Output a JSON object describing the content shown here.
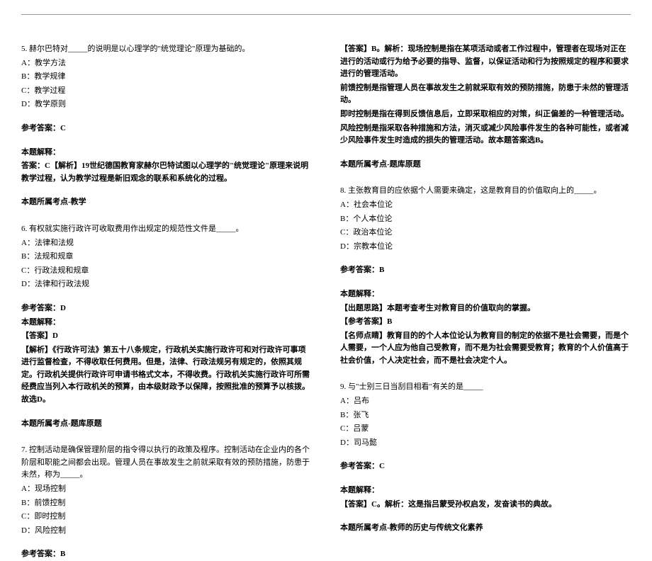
{
  "left": {
    "q5": {
      "stem": "5. 赫尔巴特对_____的说明是以心理学的\"统觉理论\"原理为基础的。",
      "a": "A：教学方法",
      "b": "B：教学规律",
      "c": "C：教学过程",
      "d": "D：教学原则",
      "ans_label": "参考答案：C",
      "expl_label": "本题解释：",
      "expl": "答案：C【解析】19世纪德国教育家赫尔巴特试图以心理学的\"统觉理论\"原理来说明教学过程，认为教学过程是新旧观念的联系和系统化的过程。",
      "topic": "本题所属考点-教学"
    },
    "q6": {
      "stem": "6. 有权就实施行政许可收取费用作出规定的规范性文件是_____。",
      "a": "A：法律和法规",
      "b": "B：法规和规章",
      "c": "C：行政法规和规章",
      "d": "D：法律和行政法规",
      "ans_label": "参考答案：D",
      "expl_label": "本题解释：",
      "expl_sub": "【答案】D",
      "expl": "【解析】《行政许可法》第五十八条规定，行政机关实施行政许可和对行政许可事项进行监督检查，不得收取任何费用。但是，法律、行政法规另有规定的，依照其规定。行政机关提供行政许可申请书格式文本，不得收费。行政机关实施行政许可所需经费应当列入本行政机关的预算，由本级财政予以保障，按照批准的预算予以核拨。故选D。",
      "topic": "本题所属考点-题库原题"
    },
    "q7": {
      "stem": "7. 控制活动是确保管理阶层的指令得以执行的政策及程序。控制活动在企业内的各个阶层和职能之间都会出现。管理人员在事故发生之前就采取有效的预防措施，防患于未然，称为_____。",
      "a": "A：现场控制",
      "b": "B：前馈控制",
      "c": "C：即时控制",
      "d": "D：风险控制",
      "ans_label": "参考答案：B"
    }
  },
  "right": {
    "q7cont": {
      "expl_label": "本题解释：",
      "line1": "【答案】B。解析：现场控制是指在某项活动或者工作过程中，管理者在现场对正在进行的活动或行为给予必要的指导、监督，以保证活动和行为按照规定的程序和要求进行的管理活动。",
      "line2": "前馈控制是指管理人员在事故发生之前就采取有效的预防措施，防患于未然的管理活动。",
      "line3": "即时控制是指在得到反馈信息后，立即采取相应的对策，纠正偏差的一种管理活动。",
      "line4": "风险控制是指采取各种措施和方法，消灭或减少风险事件发生的各种可能性，或者减少风险事件发生时造成的损失的管理活动。故本题答案选B。",
      "topic": "本题所属考点-题库原题"
    },
    "q8": {
      "stem": "8. 主张教育目的应依据个人需要来确定，这是教育目的价值取向上的_____。",
      "a": "A：社会本位论",
      "b": "B：个人本位论",
      "c": "C：政治本位论",
      "d": "D：宗教本位论",
      "ans_label": "参考答案：B",
      "expl_label": "本题解释：",
      "expl_line1": "【出题思路】本题考查考生对教育目的价值取向的掌握。",
      "expl_line2": "【参考答案】B",
      "expl_line3": "【名师点睛】教育目的的个人本位论认为教育目的制定的依据不是社会需要，而是个人需要，一个人应为他自己受教育，而不是为社会需要受教育；教育的个人价值高于社会价值，个人决定社会，而不是社会决定个人。"
    },
    "q9": {
      "stem": "9. 与\"士别三日当刮目相看\"有关的是_____",
      "a": "A：吕布",
      "b": "B：张飞",
      "c": "C：吕蒙",
      "d": "D：司马懿",
      "ans_label": "参考答案：C",
      "expl_label": "本题解释：",
      "expl": "【答案】C。解析：这是指吕蒙受孙权启发，发奋读书的典故。",
      "topic": "本题所属考点-教师的历史与传统文化素养"
    }
  }
}
